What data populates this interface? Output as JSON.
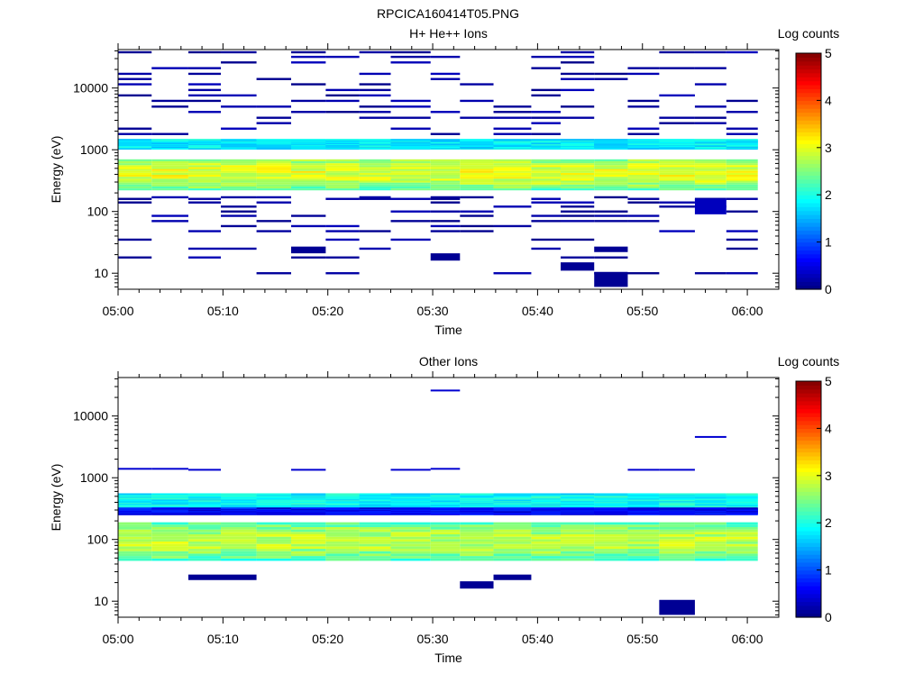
{
  "page": {
    "figure_title": "RPCICA160414T05.PNG"
  },
  "chart_data": [
    {
      "type": "heatmap",
      "title": "H+ He++ Ions",
      "xlabel": "Time",
      "ylabel": "Energy (eV)",
      "x_ticks": [
        "05:00",
        "05:10",
        "05:20",
        "05:30",
        "05:40",
        "05:50",
        "06:00"
      ],
      "x_range_minutes": [
        0,
        63
      ],
      "y_scale": "log",
      "y_ticks": [
        10,
        100,
        1000,
        10000
      ],
      "y_tick_labels": [
        "10",
        "100",
        "1000",
        "10000"
      ],
      "y_range": [
        5.5,
        42000
      ],
      "colorbar": {
        "label": "Log counts",
        "ticks": [
          "0",
          "1",
          "2",
          "3",
          "4",
          "5"
        ],
        "range": [
          0,
          5
        ],
        "colormap": "jet"
      },
      "time_bins_minutes": [
        0,
        3.2,
        6.7,
        9.8,
        13.2,
        16.5,
        19.8,
        23.0,
        26.0,
        29.8,
        32.6,
        35.8,
        39.4,
        42.2,
        45.4,
        48.6,
        51.6,
        55.0,
        58.0,
        61.0
      ],
      "core_band": {
        "energy_eV": [
          220,
          700
        ],
        "peak_eV": 420,
        "peak_log_counts": 3.0
      },
      "upper_band": {
        "energy_eV": [
          1050,
          1500
        ],
        "log_counts": 1.8
      },
      "sparse_energies_eV": [
        10,
        18,
        25,
        35,
        48,
        58,
        70,
        85,
        100,
        120,
        140,
        160,
        170,
        1800,
        2200,
        2700,
        3300,
        4100,
        5000,
        6200,
        7600,
        9300,
        11500,
        14000,
        17000,
        21000,
        26000,
        32000,
        38000
      ],
      "low_blocks": [
        {
          "t": [
            16.5,
            19.8
          ],
          "eV": [
            21,
            27
          ],
          "log_counts": 0.1
        },
        {
          "t": [
            29.8,
            32.6
          ],
          "eV": [
            16,
            21
          ],
          "log_counts": 0.1
        },
        {
          "t": [
            42.2,
            45.4
          ],
          "eV": [
            11,
            15
          ],
          "log_counts": 0.1
        },
        {
          "t": [
            45.4,
            48.6
          ],
          "eV": [
            6,
            10.5
          ],
          "log_counts": 0.1
        },
        {
          "t": [
            45.4,
            48.6
          ],
          "eV": [
            22,
            27
          ],
          "log_counts": 0.1
        },
        {
          "t": [
            55.0,
            58.0
          ],
          "eV": [
            90,
            160
          ],
          "log_counts": 0.3
        }
      ]
    },
    {
      "type": "heatmap",
      "title": "Other Ions",
      "xlabel": "Time",
      "ylabel": "Energy (eV)",
      "x_ticks": [
        "05:00",
        "05:10",
        "05:20",
        "05:30",
        "05:40",
        "05:50",
        "06:00"
      ],
      "x_range_minutes": [
        0,
        63
      ],
      "y_scale": "log",
      "y_ticks": [
        10,
        100,
        1000,
        10000
      ],
      "y_tick_labels": [
        "10",
        "100",
        "1000",
        "10000"
      ],
      "y_range": [
        5.5,
        42000
      ],
      "colorbar": {
        "label": "Log counts",
        "ticks": [
          "0",
          "1",
          "2",
          "3",
          "4",
          "5"
        ],
        "range": [
          0,
          5
        ],
        "colormap": "jet"
      },
      "time_bins_minutes": [
        0,
        3.2,
        6.7,
        9.8,
        13.2,
        16.5,
        19.8,
        23.0,
        26.0,
        29.8,
        32.6,
        35.8,
        39.4,
        42.2,
        45.4,
        48.6,
        51.6,
        55.0,
        58.0,
        61.0
      ],
      "upper_band": {
        "energy_eV": [
          330,
          560
        ],
        "log_counts": 1.9
      },
      "mid_band": {
        "energy_eV": [
          260,
          330
        ],
        "log_counts": 0.6
      },
      "lower_band": {
        "energy_eV": [
          45,
          190
        ],
        "peak_eV": 95,
        "peak_log_counts": 2.8
      },
      "sparse_lines": [
        {
          "t": [
            0,
            3.2
          ],
          "eV": 1400
        },
        {
          "t": [
            3.2,
            6.7
          ],
          "eV": 1400
        },
        {
          "t": [
            6.7,
            9.8
          ],
          "eV": 1350
        },
        {
          "t": [
            16.5,
            19.8
          ],
          "eV": 1350
        },
        {
          "t": [
            26.0,
            29.8
          ],
          "eV": 1350
        },
        {
          "t": [
            29.8,
            32.6
          ],
          "eV": 1400
        },
        {
          "t": [
            48.6,
            51.6
          ],
          "eV": 1350
        },
        {
          "t": [
            51.6,
            55.0
          ],
          "eV": 1350
        },
        {
          "t": [
            55.0,
            58.0
          ],
          "eV": 4600
        },
        {
          "t": [
            29.8,
            32.6
          ],
          "eV": 26000
        }
      ],
      "low_blocks": [
        {
          "t": [
            6.7,
            13.2
          ],
          "eV": [
            22,
            27
          ],
          "log_counts": 0.1
        },
        {
          "t": [
            32.6,
            35.8
          ],
          "eV": [
            16,
            21
          ],
          "log_counts": 0.1
        },
        {
          "t": [
            35.8,
            39.4
          ],
          "eV": [
            22,
            27
          ],
          "log_counts": 0.1
        },
        {
          "t": [
            51.6,
            55.0
          ],
          "eV": [
            6,
            10.5
          ],
          "log_counts": 0.1
        }
      ]
    }
  ]
}
